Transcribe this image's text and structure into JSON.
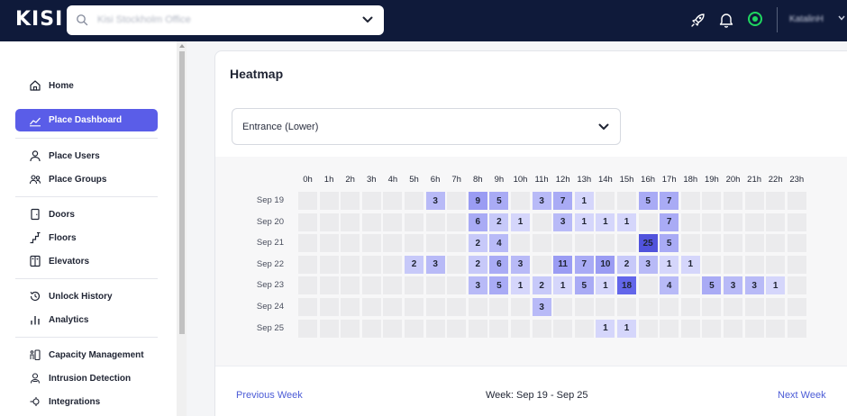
{
  "app": {
    "logo": "KISI"
  },
  "search": {
    "value": "Kisi Stockholm Office"
  },
  "user": {
    "name": "KatalinH"
  },
  "colors": {
    "topbar": "#0f1a3a",
    "accent": "#5a5de8",
    "status": "#1fd760",
    "link": "#4b5bd6"
  },
  "sidebar": {
    "items": [
      {
        "label": "Home",
        "icon": "home-icon",
        "active": false
      },
      {
        "label": "Place Dashboard",
        "icon": "chart-line-icon",
        "active": true
      },
      {
        "label": "Place Users",
        "icon": "user-icon",
        "active": false
      },
      {
        "label": "Place Groups",
        "icon": "users-icon",
        "active": false
      },
      {
        "label": "Doors",
        "icon": "door-icon",
        "active": false
      },
      {
        "label": "Floors",
        "icon": "floors-icon",
        "active": false
      },
      {
        "label": "Elevators",
        "icon": "elevator-icon",
        "active": false
      },
      {
        "label": "Unlock History",
        "icon": "history-icon",
        "active": false
      },
      {
        "label": "Analytics",
        "icon": "bar-chart-icon",
        "active": false
      },
      {
        "label": "Capacity Management",
        "icon": "capacity-icon",
        "active": false
      },
      {
        "label": "Intrusion Detection",
        "icon": "intrusion-icon",
        "active": false
      },
      {
        "label": "Integrations",
        "icon": "integrations-icon",
        "active": false
      }
    ]
  },
  "heatmap": {
    "title": "Heatmap",
    "selected_door": "Entrance (Lower)",
    "hours": [
      "0h",
      "1h",
      "2h",
      "3h",
      "4h",
      "5h",
      "6h",
      "7h",
      "8h",
      "9h",
      "10h",
      "11h",
      "12h",
      "13h",
      "14h",
      "15h",
      "16h",
      "17h",
      "18h",
      "19h",
      "20h",
      "21h",
      "22h",
      "23h"
    ],
    "days": [
      "Sep 19",
      "Sep 20",
      "Sep 21",
      "Sep 22",
      "Sep 23",
      "Sep 24",
      "Sep 25"
    ],
    "values": [
      [
        0,
        0,
        0,
        0,
        0,
        0,
        3,
        0,
        9,
        5,
        0,
        3,
        7,
        1,
        0,
        0,
        5,
        7,
        0,
        0,
        0,
        0,
        0,
        0
      ],
      [
        0,
        0,
        0,
        0,
        0,
        0,
        0,
        0,
        6,
        2,
        1,
        0,
        3,
        1,
        1,
        1,
        0,
        7,
        0,
        0,
        0,
        0,
        0,
        0
      ],
      [
        0,
        0,
        0,
        0,
        0,
        0,
        0,
        0,
        2,
        4,
        0,
        0,
        0,
        0,
        0,
        0,
        25,
        5,
        0,
        0,
        0,
        0,
        0,
        0
      ],
      [
        0,
        0,
        0,
        0,
        0,
        2,
        3,
        0,
        2,
        6,
        3,
        0,
        11,
        7,
        10,
        2,
        3,
        1,
        1,
        0,
        0,
        0,
        0,
        0
      ],
      [
        0,
        0,
        0,
        0,
        0,
        0,
        0,
        0,
        3,
        5,
        1,
        2,
        1,
        5,
        1,
        18,
        0,
        4,
        0,
        5,
        3,
        3,
        1,
        0
      ],
      [
        0,
        0,
        0,
        0,
        0,
        0,
        0,
        0,
        0,
        0,
        0,
        3,
        0,
        0,
        0,
        0,
        0,
        0,
        0,
        0,
        0,
        0,
        0,
        0
      ],
      [
        0,
        0,
        0,
        0,
        0,
        0,
        0,
        0,
        0,
        0,
        0,
        0,
        0,
        0,
        1,
        1,
        0,
        0,
        0,
        0,
        0,
        0,
        0,
        0
      ]
    ],
    "prev_label": "Previous Week",
    "week_label": "Week: Sep 19 - Sep 25",
    "next_label": "Next Week"
  }
}
